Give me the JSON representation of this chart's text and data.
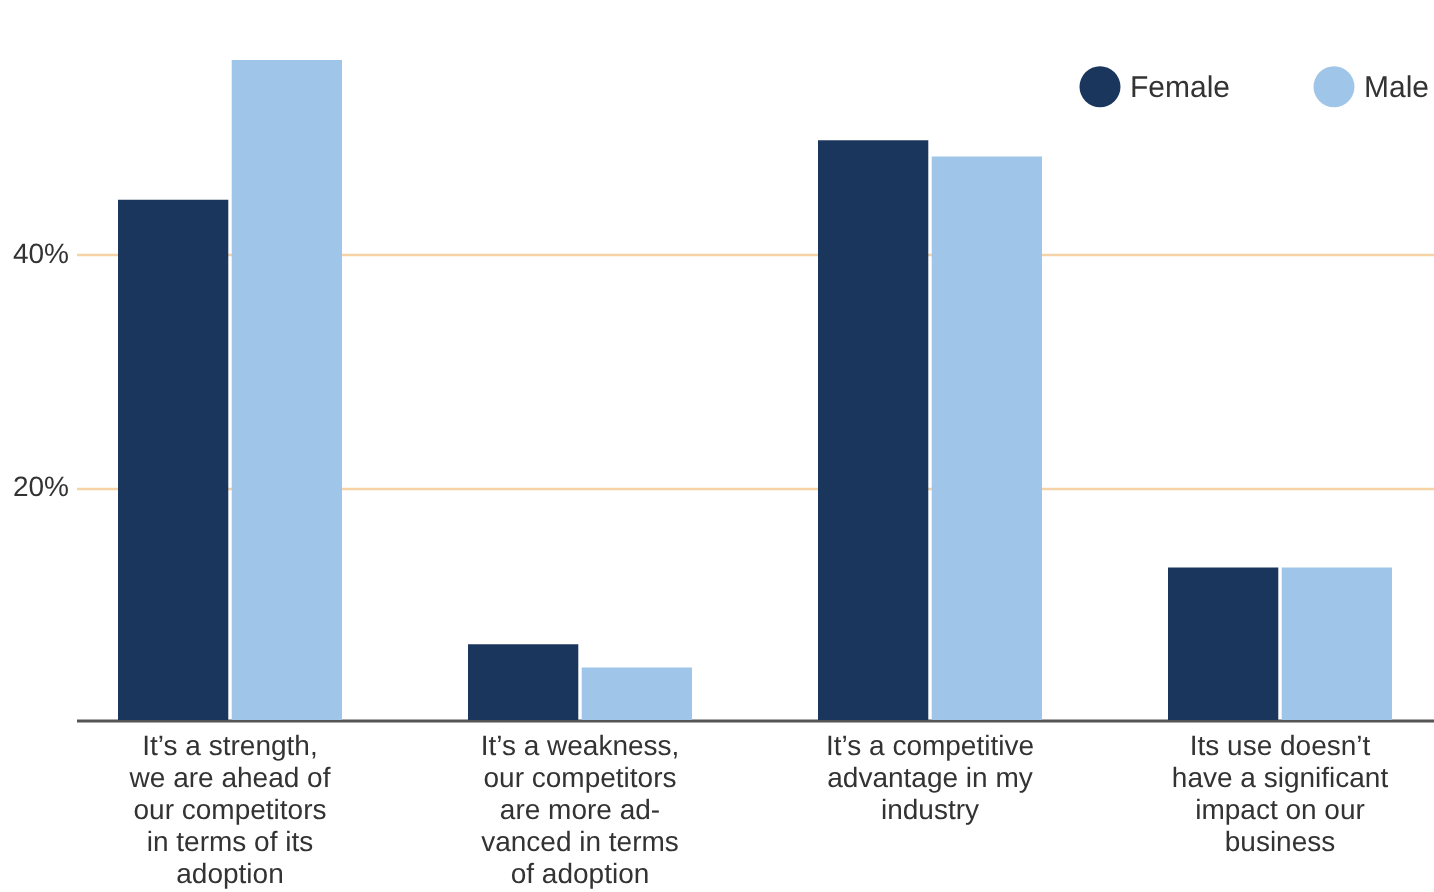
{
  "chart_data": {
    "type": "bar",
    "categories": [
      "It’s a strength,\nwe are ahead of\nour competitors\nin terms of its\nadoption",
      "It’s a weakness,\nour competitors\nare more ad-\nvanced in terms\nof adoption",
      "It’s a competitive\nadvantage in my\nindustry",
      "Its use doesn’t\nhave a significant\nimpact on our\nbusiness"
    ],
    "series": [
      {
        "name": "Female",
        "color": "#1b365d",
        "values": [
          44.7,
          6.5,
          49.8,
          13.1
        ]
      },
      {
        "name": "Male",
        "color": "#9fc6e8",
        "values": [
          56.7,
          4.5,
          48.4,
          13.1
        ]
      }
    ],
    "ylim": [
      0,
      56.7
    ],
    "yticks": [
      {
        "value": 20,
        "label": "20%"
      },
      {
        "value": 40,
        "label": "40%"
      }
    ],
    "grid": "y",
    "legend": "top right"
  }
}
